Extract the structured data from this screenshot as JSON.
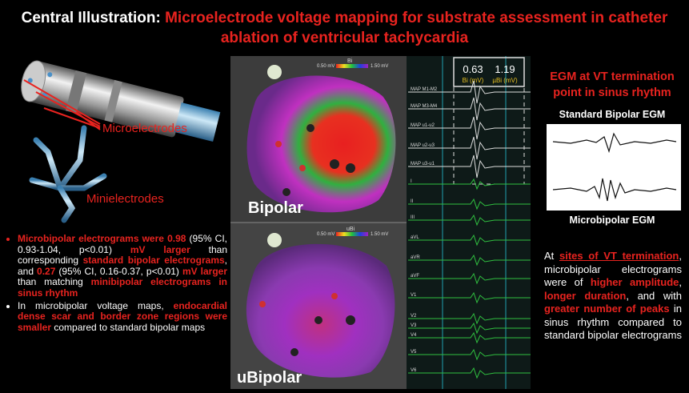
{
  "title": {
    "lead": "Central Illustration:",
    "text": "Microelectrode voltage mapping for substrate assessment in catheter ablation of ventricular tachycardia"
  },
  "figure_labels": {
    "microelectrodes": "Microelectrodes",
    "minielectrodes": "Minielectrodes"
  },
  "findings": [
    [
      {
        "text": "Microbipolar electrograms were 0.98",
        "color": "#e8231f"
      },
      {
        "text": " (95% CI, 0.93-1.04, p<0.01) ",
        "color": "#ffffff"
      },
      {
        "text": "mV larger",
        "color": "#e8231f"
      },
      {
        "text": " than corresponding ",
        "color": "#ffffff"
      },
      {
        "text": "standard bipolar electrograms",
        "color": "#e8231f"
      },
      {
        "text": ", and ",
        "color": "#ffffff"
      },
      {
        "text": "0.27",
        "color": "#e8231f"
      },
      {
        "text": " (95% CI, 0.16-0.37, p<0.01) ",
        "color": "#ffffff"
      },
      {
        "text": "mV larger",
        "color": "#e8231f"
      },
      {
        "text": " than matching ",
        "color": "#ffffff"
      },
      {
        "text": "minibipolar electrograms in sinus rhythm",
        "color": "#e8231f"
      }
    ],
    [
      {
        "text": "In microbipolar voltage maps, ",
        "color": "#ffffff"
      },
      {
        "text": "endocardial dense scar and border zone regions were smaller",
        "color": "#e8231f"
      },
      {
        "text": " compared to standard bipolar maps",
        "color": "#ffffff"
      }
    ]
  ],
  "maps": [
    {
      "label": "Bipolar",
      "scale_min": "0.50 mV",
      "scale_name": "Bi",
      "scale_max": "1.50 mV"
    },
    {
      "label": "uBipolar",
      "scale_min": "0.50 mV",
      "scale_name": "uBi",
      "scale_max": "1.50 mV"
    }
  ],
  "egm_panel": {
    "bi_value": 0.63,
    "ubi_value": 1.19,
    "bi_unit": "Bi (mV)",
    "ubi_unit": "µBi (mV)",
    "channels": [
      "MAP M1-M2",
      "MAP M3-M4",
      "MAP u1-u2",
      "MAP u2-u3",
      "MAP u3-u1",
      "I",
      "II",
      "III",
      "aVL",
      "aVR",
      "aVF",
      "V1",
      "V2",
      "V3",
      "V4",
      "V5",
      "V6"
    ]
  },
  "right_panel": {
    "heading": "EGM at VT termination point in sinus rhythm",
    "top_label": "Standard Bipolar EGM",
    "bottom_label": "Microbipolar EGM",
    "summary": [
      {
        "text": "At ",
        "color": "#ffffff"
      },
      {
        "text": "sites of VT termination",
        "color": "#e8231f",
        "underline": true
      },
      {
        "text": ", microbipolar electrograms were of ",
        "color": "#ffffff"
      },
      {
        "text": "higher amplitude",
        "color": "#e8231f"
      },
      {
        "text": ", ",
        "color": "#ffffff"
      },
      {
        "text": "longer duration",
        "color": "#e8231f"
      },
      {
        "text": ", and with ",
        "color": "#ffffff"
      },
      {
        "text": "greater number of peaks",
        "color": "#e8231f"
      },
      {
        "text": " in sinus rhythm compared to standard bipolar electrograms",
        "color": "#ffffff"
      }
    ]
  }
}
